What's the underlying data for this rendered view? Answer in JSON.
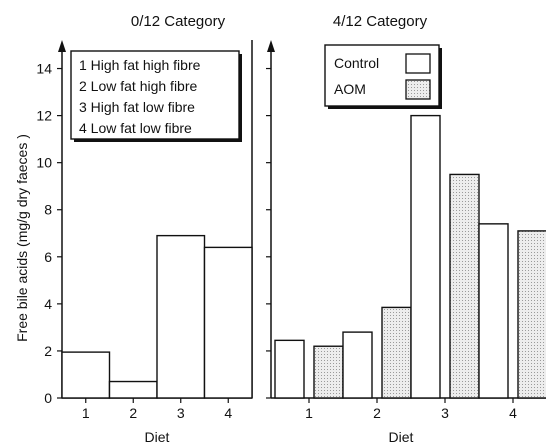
{
  "chart_data": [
    {
      "type": "bar",
      "title": "0/12 Category",
      "xlabel": "Diet",
      "ylabel": "Free bile acids (mg/g dry faeces )",
      "ylim": [
        0,
        15
      ],
      "yticks": [
        "0",
        "2",
        "4",
        "6",
        "8",
        "10",
        "12",
        "14"
      ],
      "categories": [
        "1",
        "2",
        "3",
        "4"
      ],
      "values": [
        1.95,
        0.7,
        6.9,
        6.4
      ],
      "legend": {
        "placement": "top-right",
        "entries": [
          "1 High fat high fibre",
          "2 Low fat high fibre",
          "3 High fat low fibre",
          "4 Low fat low fibre"
        ]
      },
      "grid": false
    },
    {
      "type": "bar",
      "title": "4/12 Category",
      "xlabel": "Diet",
      "ylim": [
        0,
        15
      ],
      "categories": [
        "1",
        "2",
        "3",
        "4"
      ],
      "series": [
        {
          "name": "Control",
          "values": [
            2.45,
            2.8,
            12.0,
            7.4
          ],
          "fill": "#ffffff"
        },
        {
          "name": "AOM",
          "values": [
            2.2,
            3.85,
            9.5,
            7.1
          ],
          "fill": "#ececec"
        }
      ],
      "legend": {
        "placement": "top",
        "entries": [
          "Control",
          "AOM"
        ]
      },
      "grid": false
    }
  ]
}
